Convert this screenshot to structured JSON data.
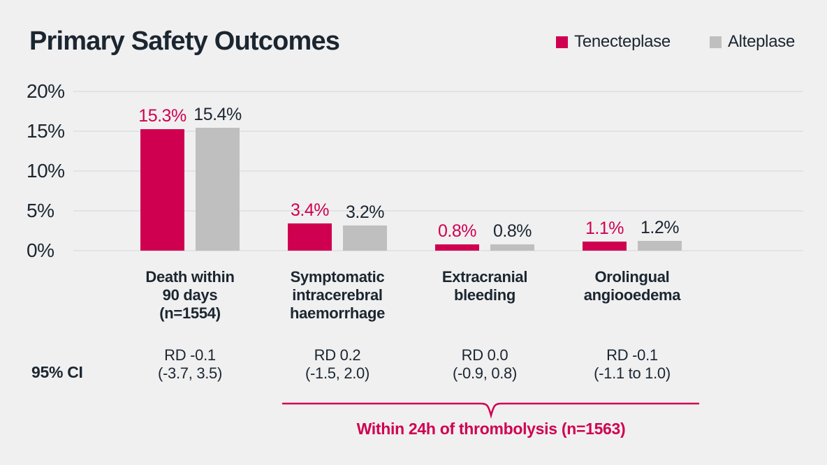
{
  "title": "Primary Safety Outcomes",
  "colors": {
    "tenecteplase": "#D00050",
    "alteplase": "#BFBFBF",
    "text_dark": "#1B2630",
    "grid": "#E2E3E6",
    "background": "#F0F0F1",
    "accent": "#D00050"
  },
  "legend": {
    "items": [
      {
        "label": "Tenecteplase",
        "color_key": "tenecteplase"
      },
      {
        "label": "Alteplase",
        "color_key": "alteplase"
      }
    ]
  },
  "chart_data": {
    "type": "bar",
    "title": "Primary Safety Outcomes",
    "categories": [
      [
        "Death within",
        "90 days",
        "(n=1554)"
      ],
      [
        "Symptomatic",
        "intracerebral",
        "haemorrhage"
      ],
      [
        "Extracranial",
        "bleeding"
      ],
      [
        "Orolingual",
        "angiooedema"
      ]
    ],
    "series": [
      {
        "name": "Tenecteplase",
        "values": [
          15.3,
          3.4,
          0.8,
          1.1
        ],
        "labels": [
          "15.3%",
          "3.4%",
          "0.8%",
          "1.1%"
        ]
      },
      {
        "name": "Alteplase",
        "values": [
          15.4,
          3.2,
          0.8,
          1.2
        ],
        "labels": [
          "15.4%",
          "3.2%",
          "0.8%",
          "1.2%"
        ]
      }
    ],
    "xlabel": "",
    "ylabel": "",
    "ylim": [
      0,
      20
    ],
    "y_ticks": [
      {
        "value": 0,
        "label": "0%"
      },
      {
        "value": 5,
        "label": "5%"
      },
      {
        "value": 10,
        "label": "10%"
      },
      {
        "value": 15,
        "label": "15%"
      },
      {
        "value": 20,
        "label": "20%"
      }
    ],
    "grid": true,
    "legend_position": "top-right"
  },
  "ci_row": {
    "label": "95% CI",
    "values": [
      [
        "RD -0.1",
        "(-3.7, 3.5)"
      ],
      [
        "RD 0.2",
        "(-1.5, 2.0)"
      ],
      [
        "RD 0.0",
        "(-0.9, 0.8)"
      ],
      [
        "RD -0.1",
        "(-1.1 to 1.0)"
      ]
    ]
  },
  "bracket": {
    "label": "Within 24h of thrombolysis (n=1563)",
    "span_categories": [
      1,
      3
    ]
  }
}
